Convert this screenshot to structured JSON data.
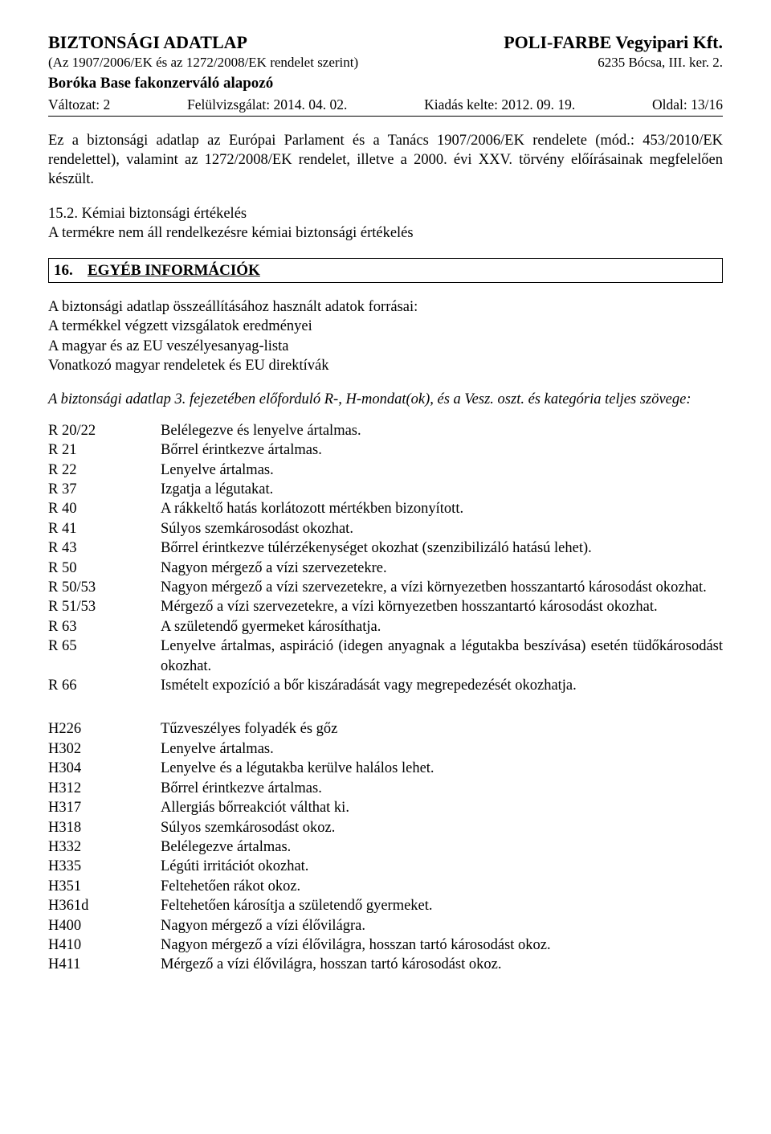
{
  "header": {
    "title_left": "BIZTONSÁGI ADATLAP",
    "title_right": "POLI-FARBE Vegyipari Kft.",
    "sub_left": "(Az 1907/2006/EK és az 1272/2008/EK rendelet szerint)",
    "sub_right": "6235 Bócsa, III. ker. 2.",
    "product": "Boróka Base fakonzerváló alapozó",
    "meta_items": [
      "Változat: 2",
      "Felülvizsgálat: 2014. 04. 02.",
      "Kiadás kelte: 2012. 09. 19.",
      "Oldal: 13/16"
    ]
  },
  "para1": "Ez a biztonsági adatlap az Európai Parlament és a Tanács 1907/2006/EK rendelete (mód.: 453/2010/EK rendelettel), valamint az 1272/2008/EK rendelet, illetve a 2000. évi XXV. törvény előírásainak megfelelően készült.",
  "s15_hdr": "15.2. Kémiai biztonsági értékelés",
  "s15_txt": "A termékre nem áll rendelkezésre kémiai biztonsági értékelés",
  "section16": {
    "num": "16.",
    "title": "EGYÉB INFORMÁCIÓK"
  },
  "src_intro": "A biztonsági adatlap összeállításához használt adatok forrásai:",
  "src_items": [
    "A termékkel végzett vizsgálatok eredményei",
    "A magyar és az EU veszélyesanyag-lista",
    "Vonatkozó magyar rendeletek és EU direktívák"
  ],
  "phrase_intro": "A biztonsági adatlap 3. fejezetében előforduló R-, H-mondat(ok), és a Vesz. oszt. és kategória teljes szövege:",
  "r_phrases": [
    {
      "code": "R 20/22",
      "desc": "Belélegezve és lenyelve ártalmas."
    },
    {
      "code": "R 21",
      "desc": "Bőrrel érintkezve ártalmas."
    },
    {
      "code": "R 22",
      "desc": "Lenyelve ártalmas."
    },
    {
      "code": "R 37",
      "desc": "Izgatja a légutakat."
    },
    {
      "code": "R 40",
      "desc": "A rákkeltő hatás korlátozott mértékben bizonyított."
    },
    {
      "code": "R 41",
      "desc": "Súlyos szemkárosodást okozhat."
    },
    {
      "code": "R 43",
      "desc": "Bőrrel érintkezve túlérzékenységet okozhat (szenzibilizáló hatású lehet)."
    },
    {
      "code": "R 50",
      "desc": "Nagyon mérgező a vízi szervezetekre."
    },
    {
      "code": "R 50/53",
      "desc": "Nagyon mérgező a vízi szervezetekre, a vízi környezetben hosszantartó károsodást okozhat."
    },
    {
      "code": "R 51/53",
      "desc": "Mérgező a vízi szervezetekre, a vízi környezetben hosszantartó károsodást okozhat."
    },
    {
      "code": "R 63",
      "desc": "A születendő gyermeket károsíthatja."
    },
    {
      "code": "R 65",
      "desc": "Lenyelve ártalmas, aspiráció (idegen anyagnak a légutakba beszívása) esetén tüdőkárosodást okozhat."
    },
    {
      "code": "R 66",
      "desc": "Ismételt expozíció a bőr kiszáradását vagy megrepedezését okozhatja."
    }
  ],
  "h_phrases": [
    {
      "code": "H226",
      "desc": "Tűzveszélyes folyadék és gőz"
    },
    {
      "code": "H302",
      "desc": "Lenyelve ártalmas."
    },
    {
      "code": "H304",
      "desc": "Lenyelve és a légutakba kerülve halálos lehet."
    },
    {
      "code": "H312",
      "desc": "Bőrrel érintkezve ártalmas."
    },
    {
      "code": "H317",
      "desc": "Allergiás bőrreakciót válthat ki."
    },
    {
      "code": "H318",
      "desc": "Súlyos szemkárosodást okoz."
    },
    {
      "code": "H332",
      "desc": "Belélegezve ártalmas."
    },
    {
      "code": "H335",
      "desc": "Légúti irritációt okozhat."
    },
    {
      "code": "H351",
      "desc": "Feltehetően rákot okoz."
    },
    {
      "code": "H361d",
      "desc": "Feltehetően károsítja a születendő gyermeket."
    },
    {
      "code": "H400",
      "desc": "Nagyon mérgező a vízi élővilágra."
    },
    {
      "code": "H410",
      "desc": "Nagyon mérgező a vízi élővilágra, hosszan tartó károsodást okoz."
    },
    {
      "code": "H411",
      "desc": "Mérgező a vízi élővilágra, hosszan tartó károsodást okoz."
    }
  ]
}
